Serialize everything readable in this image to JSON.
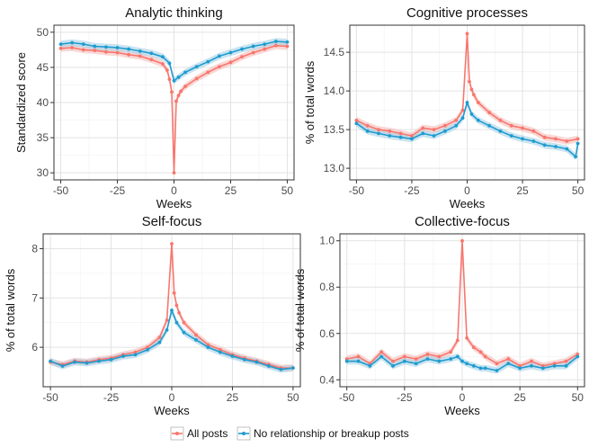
{
  "legend": {
    "position": "bottom",
    "entries": [
      {
        "label": "All posts",
        "color": "#F8766D"
      },
      {
        "label": "No relationship or breakup posts",
        "color": "#1F9BCF"
      }
    ]
  },
  "chart_data": [
    {
      "type": "line",
      "title": "Analytic thinking",
      "xlabel": "Weeks",
      "ylabel": "Standardized score",
      "xlim": [
        -53,
        53
      ],
      "ylim": [
        29,
        51
      ],
      "xticks": [
        -50,
        -25,
        0,
        25,
        50
      ],
      "yticks": [
        30,
        35,
        40,
        45,
        50
      ],
      "grid": true,
      "series": [
        {
          "name": "All posts",
          "color": "#F8766D",
          "x": [
            -50,
            -45,
            -40,
            -35,
            -30,
            -25,
            -20,
            -15,
            -10,
            -5,
            -3,
            -2,
            -1,
            0,
            1,
            2,
            3,
            5,
            10,
            15,
            20,
            25,
            30,
            35,
            40,
            45,
            50
          ],
          "y": [
            47.7,
            47.8,
            47.5,
            47.4,
            47.2,
            47.1,
            46.8,
            46.6,
            46.1,
            45.5,
            44.6,
            43.3,
            41.5,
            30.0,
            40.2,
            41.0,
            41.6,
            42.3,
            43.4,
            44.3,
            45.1,
            45.7,
            46.5,
            47.1,
            47.6,
            48.1,
            48.0
          ]
        },
        {
          "name": "No relationship or breakup posts",
          "color": "#1F9BCF",
          "x": [
            -50,
            -45,
            -40,
            -35,
            -30,
            -25,
            -20,
            -15,
            -10,
            -5,
            -2,
            0,
            2,
            5,
            10,
            15,
            20,
            25,
            30,
            35,
            40,
            45,
            50
          ],
          "y": [
            48.3,
            48.5,
            48.3,
            48.0,
            47.9,
            47.8,
            47.6,
            47.3,
            47.0,
            46.5,
            45.6,
            43.1,
            43.6,
            44.3,
            45.1,
            45.8,
            46.6,
            47.1,
            47.6,
            48.0,
            48.3,
            48.7,
            48.6
          ]
        }
      ]
    },
    {
      "type": "line",
      "title": "Cognitive processes",
      "xlabel": "Weeks",
      "ylabel": "% of total words",
      "xlim": [
        -53,
        53
      ],
      "ylim": [
        12.85,
        14.85
      ],
      "xticks": [
        -50,
        -25,
        0,
        25,
        50
      ],
      "yticks": [
        13.0,
        13.5,
        14.0,
        14.5
      ],
      "grid": true,
      "series": [
        {
          "name": "All posts",
          "color": "#F8766D",
          "x": [
            -50,
            -45,
            -40,
            -35,
            -30,
            -25,
            -20,
            -15,
            -10,
            -5,
            -2,
            0,
            1,
            2,
            3,
            5,
            10,
            15,
            20,
            25,
            30,
            35,
            40,
            45,
            50
          ],
          "y": [
            13.62,
            13.55,
            13.5,
            13.48,
            13.45,
            13.42,
            13.52,
            13.5,
            13.55,
            13.62,
            13.75,
            14.74,
            14.12,
            14.02,
            13.95,
            13.85,
            13.72,
            13.62,
            13.55,
            13.52,
            13.48,
            13.4,
            13.38,
            13.35,
            13.38
          ]
        },
        {
          "name": "No relationship or breakup posts",
          "color": "#1F9BCF",
          "x": [
            -50,
            -45,
            -40,
            -35,
            -30,
            -25,
            -20,
            -15,
            -10,
            -5,
            -2,
            0,
            2,
            5,
            10,
            15,
            20,
            25,
            30,
            35,
            40,
            45,
            49,
            50
          ],
          "y": [
            13.58,
            13.48,
            13.45,
            13.42,
            13.4,
            13.38,
            13.45,
            13.42,
            13.48,
            13.55,
            13.65,
            13.85,
            13.7,
            13.62,
            13.55,
            13.48,
            13.42,
            13.38,
            13.35,
            13.3,
            13.28,
            13.25,
            13.15,
            13.32
          ]
        }
      ]
    },
    {
      "type": "line",
      "title": "Self-focus",
      "xlabel": "Weeks",
      "ylabel": "% of total words",
      "xlim": [
        -53,
        53
      ],
      "ylim": [
        5.2,
        8.3
      ],
      "xticks": [
        -50,
        -25,
        0,
        25,
        50
      ],
      "yticks": [
        6,
        7,
        8
      ],
      "grid": true,
      "series": [
        {
          "name": "All posts",
          "color": "#F8766D",
          "x": [
            -50,
            -45,
            -40,
            -35,
            -30,
            -25,
            -20,
            -15,
            -10,
            -5,
            -2,
            0,
            1,
            2,
            3,
            5,
            10,
            15,
            20,
            25,
            30,
            35,
            40,
            45,
            50
          ],
          "y": [
            5.7,
            5.65,
            5.72,
            5.7,
            5.75,
            5.78,
            5.85,
            5.9,
            6.0,
            6.2,
            6.55,
            8.1,
            7.1,
            6.85,
            6.7,
            6.5,
            6.25,
            6.05,
            5.95,
            5.85,
            5.78,
            5.72,
            5.65,
            5.58,
            5.58
          ]
        },
        {
          "name": "No relationship or breakup posts",
          "color": "#1F9BCF",
          "x": [
            -50,
            -45,
            -40,
            -35,
            -30,
            -25,
            -20,
            -15,
            -10,
            -5,
            -2,
            0,
            2,
            5,
            10,
            15,
            20,
            25,
            30,
            35,
            40,
            45,
            50
          ],
          "y": [
            5.72,
            5.62,
            5.7,
            5.68,
            5.72,
            5.75,
            5.82,
            5.85,
            5.95,
            6.1,
            6.35,
            6.75,
            6.5,
            6.3,
            6.15,
            6.0,
            5.9,
            5.82,
            5.75,
            5.7,
            5.62,
            5.55,
            5.58
          ]
        }
      ]
    },
    {
      "type": "line",
      "title": "Collective-focus",
      "xlabel": "Weeks",
      "ylabel": "% of total words",
      "xlim": [
        -53,
        53
      ],
      "ylim": [
        0.37,
        1.03
      ],
      "xticks": [
        -50,
        -25,
        0,
        25,
        50
      ],
      "yticks": [
        0.4,
        0.6,
        0.8,
        1.0
      ],
      "grid": true,
      "series": [
        {
          "name": "All posts",
          "color": "#F8766D",
          "x": [
            -50,
            -45,
            -40,
            -35,
            -30,
            -25,
            -20,
            -15,
            -10,
            -5,
            -2,
            0,
            2,
            5,
            8,
            10,
            15,
            20,
            25,
            30,
            35,
            40,
            45,
            50
          ],
          "y": [
            0.49,
            0.5,
            0.47,
            0.52,
            0.48,
            0.5,
            0.49,
            0.51,
            0.5,
            0.52,
            0.57,
            1.0,
            0.58,
            0.54,
            0.52,
            0.5,
            0.47,
            0.49,
            0.46,
            0.48,
            0.46,
            0.47,
            0.48,
            0.51
          ]
        },
        {
          "name": "No relationship or breakup posts",
          "color": "#1F9BCF",
          "x": [
            -50,
            -45,
            -40,
            -35,
            -30,
            -25,
            -20,
            -15,
            -10,
            -5,
            -2,
            0,
            2,
            5,
            8,
            10,
            15,
            20,
            25,
            30,
            35,
            40,
            45,
            50
          ],
          "y": [
            0.48,
            0.48,
            0.46,
            0.5,
            0.46,
            0.48,
            0.47,
            0.49,
            0.48,
            0.49,
            0.5,
            0.48,
            0.47,
            0.46,
            0.45,
            0.45,
            0.44,
            0.47,
            0.45,
            0.46,
            0.45,
            0.46,
            0.46,
            0.5
          ]
        }
      ]
    }
  ]
}
